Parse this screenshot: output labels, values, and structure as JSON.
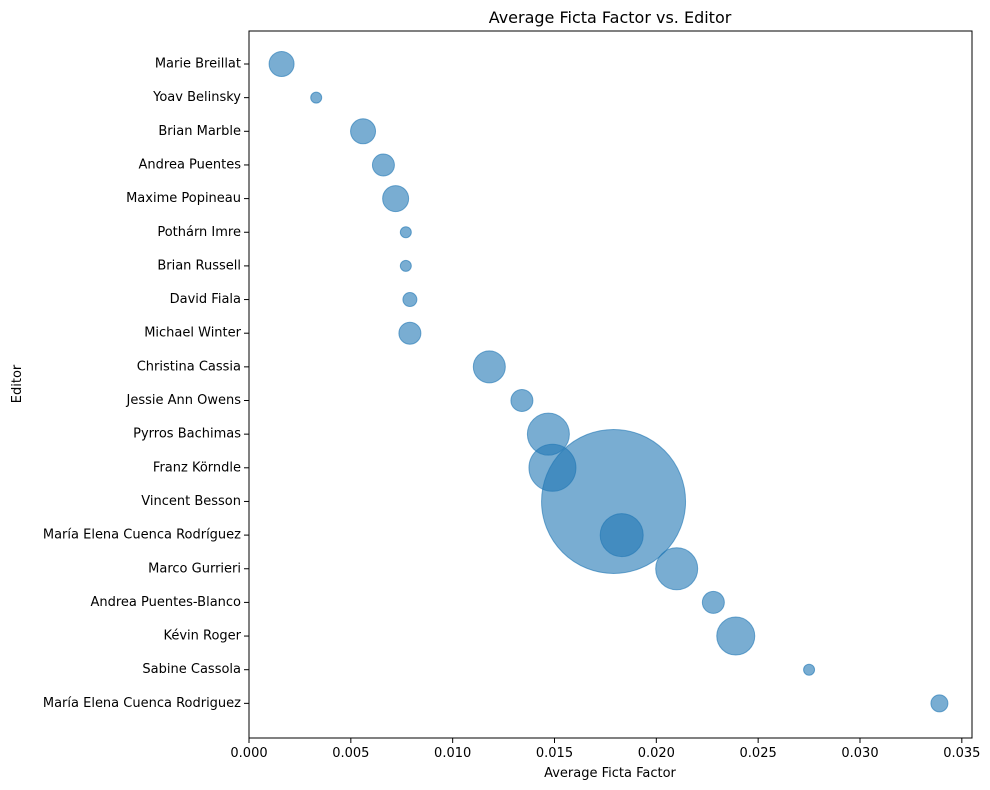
{
  "chart_data": {
    "type": "scatter",
    "title": "Average Ficta Factor vs. Editor",
    "xlabel": "Average Ficta Factor",
    "ylabel": "Editor",
    "xlim": [
      0.0,
      0.0355
    ],
    "xticks": [
      "0.000",
      "0.005",
      "0.010",
      "0.015",
      "0.020",
      "0.025",
      "0.030",
      "0.035"
    ],
    "xtick_values": [
      0.0,
      0.005,
      0.01,
      0.015,
      0.02,
      0.025,
      0.03,
      0.035
    ],
    "grid": false,
    "color": "#1f77b4",
    "alpha": 0.6,
    "points": [
      {
        "editor": "Marie Breillat",
        "x": 0.0016,
        "size": 12.5
      },
      {
        "editor": "Yoav Belinsky",
        "x": 0.0033,
        "size": 5.5
      },
      {
        "editor": "Brian Marble",
        "x": 0.0056,
        "size": 12.5
      },
      {
        "editor": "Andrea Puentes",
        "x": 0.0066,
        "size": 11
      },
      {
        "editor": "Maxime Popineau",
        "x": 0.0072,
        "size": 13
      },
      {
        "editor": "Pothárn Imre",
        "x": 0.0077,
        "size": 5.5
      },
      {
        "editor": "Brian Russell",
        "x": 0.0077,
        "size": 5.5
      },
      {
        "editor": "David Fiala",
        "x": 0.0079,
        "size": 7
      },
      {
        "editor": "Michael Winter",
        "x": 0.0079,
        "size": 11
      },
      {
        "editor": "Christina Cassia",
        "x": 0.0118,
        "size": 16
      },
      {
        "editor": "Jessie Ann Owens",
        "x": 0.0134,
        "size": 11
      },
      {
        "editor": "Pyrros Bachimas",
        "x": 0.0147,
        "size": 21
      },
      {
        "editor": "Franz Körndle",
        "x": 0.0149,
        "size": 23.5
      },
      {
        "editor": "Vincent Besson",
        "x": 0.0179,
        "size": 72
      },
      {
        "editor": "María Elena Cuenca Rodríguez",
        "x": 0.0183,
        "size": 21.5
      },
      {
        "editor": "Marco Gurrieri",
        "x": 0.021,
        "size": 21
      },
      {
        "editor": "Andrea Puentes-Blanco",
        "x": 0.0228,
        "size": 11
      },
      {
        "editor": "Kévin Roger",
        "x": 0.0239,
        "size": 19
      },
      {
        "editor": "Sabine Cassola",
        "x": 0.0275,
        "size": 5.5
      },
      {
        "editor": "María Elena Cuenca Rodriguez",
        "x": 0.0339,
        "size": 8.5
      }
    ]
  }
}
